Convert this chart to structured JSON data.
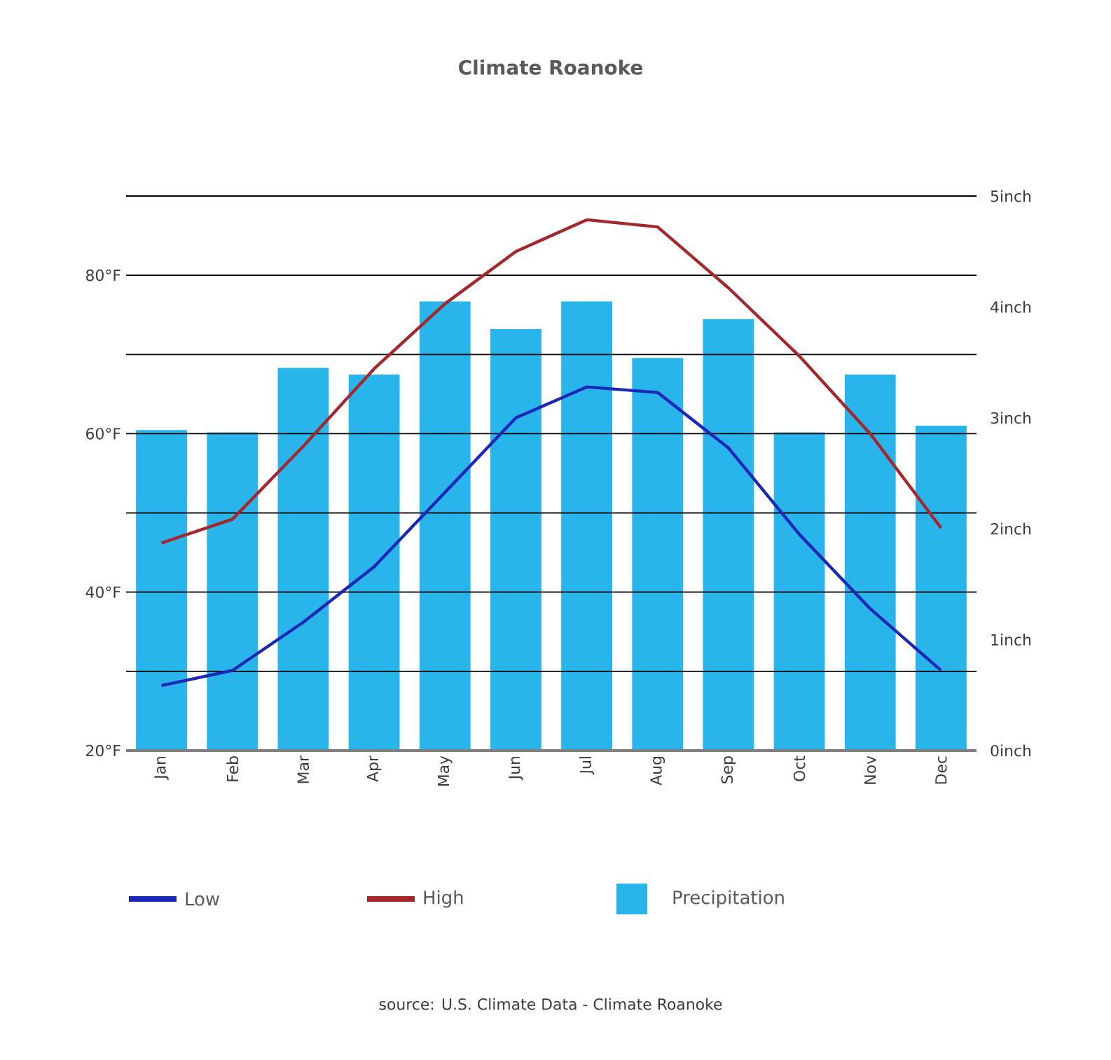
{
  "chart_data": {
    "type": "bar",
    "title": "Climate Roanoke",
    "categories": [
      "Jan",
      "Feb",
      "Mar",
      "Apr",
      "May",
      "Jun",
      "Jul",
      "Aug",
      "Sep",
      "Oct",
      "Nov",
      "Dec"
    ],
    "series": [
      {
        "name": "Precipitation",
        "axis": "y2",
        "color": "#29b5ec",
        "values": [
          2.89,
          2.87,
          3.45,
          3.39,
          4.05,
          3.8,
          4.05,
          3.54,
          3.89,
          2.87,
          3.39,
          2.93
        ]
      },
      {
        "name": "Low",
        "type": "line",
        "color": "#1a28b8",
        "values": [
          28.2,
          30.1,
          36.2,
          43.2,
          52.6,
          62.0,
          65.9,
          65.2,
          58.2,
          47.3,
          37.9,
          30.1
        ]
      },
      {
        "name": "High",
        "type": "line",
        "color": "#a3282c",
        "values": [
          46.2,
          49.2,
          58.4,
          68.2,
          76.4,
          83.0,
          87.0,
          86.1,
          78.4,
          69.8,
          60.0,
          48.1
        ]
      }
    ],
    "ylim": [
      20,
      90
    ],
    "yticks": [
      {
        "value": 20,
        "label": "20°F"
      },
      {
        "value": 30,
        "label": null
      },
      {
        "value": 40,
        "label": "40°F"
      },
      {
        "value": 50,
        "label": null
      },
      {
        "value": 60,
        "label": "60°F"
      },
      {
        "value": 70,
        "label": null
      },
      {
        "value": 80,
        "label": "80°F"
      },
      {
        "value": 90,
        "label": null
      }
    ],
    "y2lim": [
      0,
      5
    ],
    "y2ticks": [
      {
        "value": 0,
        "label": "0inch"
      },
      {
        "value": 1,
        "label": "1inch"
      },
      {
        "value": 2,
        "label": "2inch"
      },
      {
        "value": 3,
        "label": "3inch"
      },
      {
        "value": 4,
        "label": "4inch"
      },
      {
        "value": 5,
        "label": "5inch"
      }
    ],
    "grid": "y",
    "legend": "bottom",
    "marker": "none",
    "line_style": "solid",
    "annotations": [
      "source: U.S. Climate Data - Climate Roanoke"
    ]
  }
}
